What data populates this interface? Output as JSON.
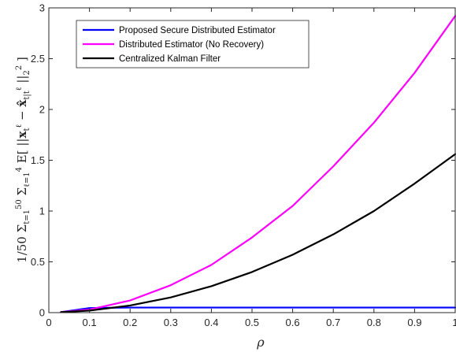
{
  "chart_data": {
    "type": "line",
    "xlabel": "ρ",
    "ylabel": "(1/50) Σ_{t=1}^{50} Σ_{ℓ=1}^{4} E[ ||x_t^ℓ − x̂_{t|t}^ℓ||_2^2 ]",
    "xlim": [
      0,
      1
    ],
    "ylim": [
      0,
      3
    ],
    "x_ticks": [
      "0",
      "0.1",
      "0.2",
      "0.3",
      "0.4",
      "0.5",
      "0.6",
      "0.7",
      "0.8",
      "0.9",
      "1"
    ],
    "y_ticks": [
      "0",
      "0.5",
      "1",
      "1.5",
      "2",
      "2.5",
      "3"
    ],
    "grid": false,
    "legend_position": "top-left",
    "x": [
      0.03,
      0.1,
      0.2,
      0.3,
      0.4,
      0.5,
      0.6,
      0.7,
      0.8,
      0.9,
      1.0
    ],
    "series": [
      {
        "name": "Proposed Secure Distributed Estimator",
        "color": "#0000ff",
        "values": [
          0.005,
          0.045,
          0.05,
          0.05,
          0.05,
          0.05,
          0.05,
          0.05,
          0.05,
          0.05,
          0.05
        ]
      },
      {
        "name": "Distributed Estimator (No Recovery)",
        "color": "#ff00ff",
        "values": [
          0.005,
          0.03,
          0.12,
          0.27,
          0.47,
          0.74,
          1.05,
          1.44,
          1.87,
          2.36,
          2.92
        ]
      },
      {
        "name": "Centralized Kalman Filter",
        "color": "#000000",
        "values": [
          0.005,
          0.02,
          0.07,
          0.15,
          0.26,
          0.4,
          0.57,
          0.77,
          1.0,
          1.27,
          1.56
        ]
      }
    ]
  }
}
